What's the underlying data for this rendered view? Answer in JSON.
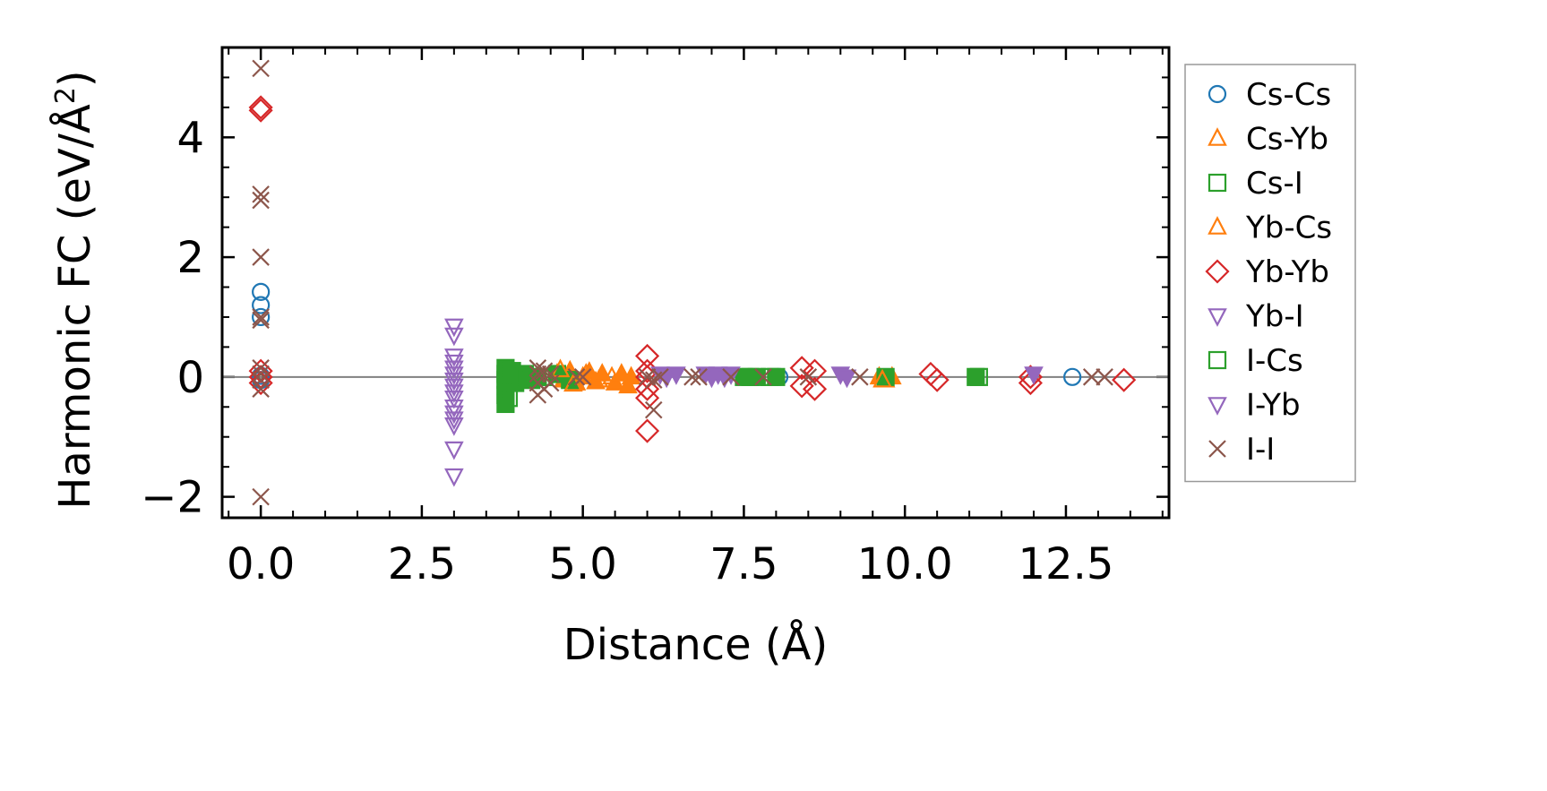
{
  "chart_data": {
    "type": "scatter",
    "title": "",
    "xlabel": "Distance (Å)",
    "ylabel": "Harmonic FC (eV/Å",
    "ylabel_sup": "2",
    "ylabel_end": ")",
    "xlim": [
      -0.6,
      14.1
    ],
    "ylim": [
      -2.35,
      5.5
    ],
    "xticks": [
      0.0,
      2.5,
      5.0,
      7.5,
      10.0,
      12.5
    ],
    "xtick_labels": [
      "0.0",
      "2.5",
      "5.0",
      "7.5",
      "10.0",
      "12.5"
    ],
    "yticks": [
      -2,
      0,
      2,
      4
    ],
    "ytick_labels": [
      "−2",
      "0",
      "2",
      "4"
    ],
    "hline": 0,
    "legend_position": "outside-right",
    "series": [
      {
        "name": "Cs-Cs",
        "marker": "circle",
        "color": "#1f77b4",
        "filled": false,
        "x": [
          0.0,
          0.0,
          0.0,
          0.0,
          0.0,
          8.05,
          12.6
        ],
        "y": [
          1.42,
          1.2,
          1.0,
          0.02,
          -0.05,
          0.0,
          0.0
        ]
      },
      {
        "name": "Cs-Yb",
        "marker": "triangle-up",
        "color": "#ff7f0e",
        "filled": true,
        "x": [
          4.6,
          4.7,
          4.8,
          4.9,
          5.0,
          5.1,
          5.2,
          5.3,
          5.5,
          5.6,
          5.7,
          5.75,
          9.6,
          9.7,
          9.8
        ],
        "y": [
          0.05,
          -0.05,
          0.1,
          -0.1,
          0.0,
          0.08,
          -0.08,
          0.05,
          -0.1,
          0.05,
          -0.15,
          0.0,
          0.0,
          -0.05,
          0.0
        ]
      },
      {
        "name": "Cs-I",
        "marker": "square",
        "color": "#2ca02c",
        "filled": true,
        "x": [
          3.8,
          3.8,
          3.8,
          3.8,
          3.8,
          3.8,
          3.9,
          3.95,
          4.0,
          4.1,
          4.2,
          4.3,
          4.6,
          4.8,
          7.5,
          7.7,
          8.0,
          9.7,
          11.1
        ],
        "y": [
          0.15,
          0.05,
          -0.05,
          -0.15,
          -0.3,
          -0.45,
          0.1,
          -0.1,
          0.0,
          0.05,
          -0.05,
          0.0,
          0.05,
          -0.05,
          0.0,
          0.0,
          0.0,
          0.0,
          0.0
        ]
      },
      {
        "name": "Yb-Cs",
        "marker": "triangle-up",
        "color": "#ff7f0e",
        "filled": false,
        "x": [
          4.65,
          4.85,
          5.05,
          5.25,
          5.45,
          9.65
        ],
        "y": [
          0.12,
          -0.12,
          0.05,
          -0.05,
          0.0,
          -0.05
        ]
      },
      {
        "name": "Yb-Yb",
        "marker": "diamond",
        "color": "#d62728",
        "filled": false,
        "x": [
          0.0,
          0.0,
          0.0,
          0.0,
          0.0,
          6.0,
          6.0,
          6.0,
          6.0,
          6.0,
          6.0,
          8.4,
          8.4,
          8.6,
          8.6,
          10.4,
          10.5,
          11.95,
          11.95,
          13.4
        ],
        "y": [
          4.5,
          4.45,
          0.1,
          0.0,
          -0.1,
          0.35,
          0.1,
          0.0,
          -0.2,
          -0.35,
          -0.9,
          0.15,
          -0.15,
          0.1,
          -0.2,
          0.05,
          -0.05,
          0.0,
          -0.1,
          -0.05
        ]
      },
      {
        "name": "Yb-I",
        "marker": "triangle-down",
        "color": "#9467bd",
        "filled": false,
        "x": [
          3.0,
          3.0,
          3.0,
          3.0,
          3.0,
          3.0,
          3.0,
          3.0,
          3.0,
          3.0,
          3.0,
          3.0,
          3.0,
          3.0,
          3.0,
          3.0
        ],
        "y": [
          0.85,
          0.7,
          0.35,
          0.25,
          0.15,
          0.05,
          -0.05,
          -0.15,
          -0.25,
          -0.35,
          -0.5,
          -0.6,
          -0.7,
          -0.8,
          -1.2,
          -1.65
        ]
      },
      {
        "name": "I-Cs",
        "marker": "square",
        "color": "#2ca02c",
        "filled": false,
        "x": [
          3.85,
          3.85,
          4.4,
          7.6,
          7.9,
          11.15
        ],
        "y": [
          0.0,
          -0.35,
          0.0,
          0.0,
          0.0,
          0.0
        ]
      },
      {
        "name": "I-Yb",
        "marker": "triangle-down",
        "color": "#9467bd",
        "filled": true,
        "x": [
          6.2,
          6.3,
          6.45,
          6.9,
          7.0,
          7.1,
          7.2,
          7.3,
          9.0,
          9.1,
          12.0
        ],
        "y": [
          0.05,
          0.0,
          0.05,
          0.05,
          0.0,
          0.05,
          0.0,
          0.05,
          0.05,
          0.0,
          0.05
        ]
      },
      {
        "name": "I-I",
        "marker": "x",
        "color": "#8c564b",
        "filled": false,
        "x": [
          0.0,
          0.0,
          0.0,
          0.0,
          0.0,
          0.0,
          0.0,
          0.0,
          0.0,
          0.0,
          0.0,
          4.3,
          4.3,
          4.3,
          4.3,
          4.4,
          4.4,
          4.5,
          4.5,
          4.9,
          5.0,
          6.0,
          6.1,
          6.1,
          6.2,
          6.7,
          6.8,
          7.3,
          7.8,
          8.5,
          9.3,
          12.9,
          13.1
        ],
        "y": [
          5.15,
          3.05,
          2.95,
          2.0,
          1.0,
          0.95,
          0.15,
          0.05,
          -0.05,
          -0.2,
          -2.0,
          0.15,
          0.05,
          -0.1,
          -0.3,
          0.1,
          -0.2,
          0.05,
          -0.1,
          0.0,
          0.0,
          0.0,
          -0.05,
          -0.55,
          0.0,
          0.0,
          0.0,
          0.0,
          0.0,
          0.0,
          0.0,
          0.0,
          0.0
        ]
      }
    ]
  }
}
